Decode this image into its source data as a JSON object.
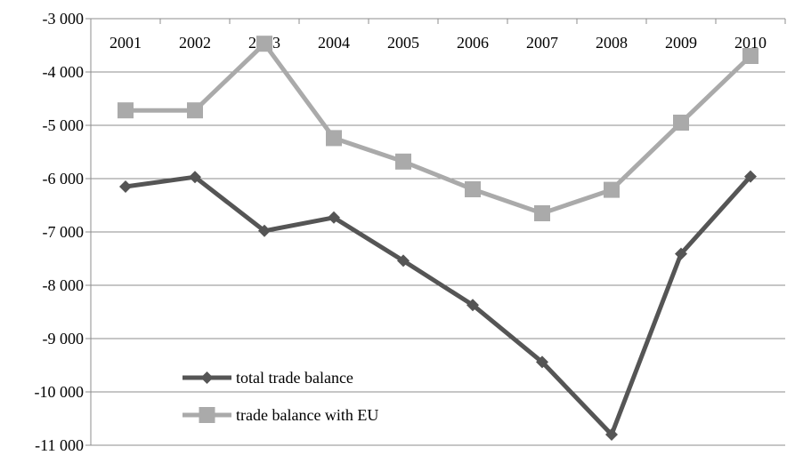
{
  "chart_data": {
    "type": "line",
    "title": "",
    "xlabel": "",
    "ylabel": "",
    "categories": [
      "2001",
      "2002",
      "2003",
      "2004",
      "2005",
      "2006",
      "2007",
      "2008",
      "2009",
      "2010"
    ],
    "ylim": [
      -11000,
      -3000
    ],
    "yticks": [
      -3000,
      -4000,
      -5000,
      -6000,
      -7000,
      -8000,
      -9000,
      -10000,
      -11000
    ],
    "ytick_labels": [
      "-3 000",
      "-4 000",
      "-5 000",
      "-6 000",
      "-7 000",
      "-8 000",
      "-9 000",
      "-10 000",
      "-11 000"
    ],
    "grid": true,
    "category_labels_position": "top",
    "legend_position": "bottom-left",
    "series": [
      {
        "name": "total trade balance",
        "color": "#555555",
        "marker": "diamond",
        "values": [
          -6150,
          -5970,
          -6980,
          -6730,
          -7540,
          -8370,
          -9440,
          -10800,
          -7410,
          -5960
        ]
      },
      {
        "name": "trade balance with EU",
        "color": "#aaaaaa",
        "marker": "square",
        "values": [
          -4720,
          -4720,
          -3470,
          -5240,
          -5680,
          -6200,
          -6650,
          -6210,
          -4950,
          -3700
        ]
      }
    ]
  }
}
